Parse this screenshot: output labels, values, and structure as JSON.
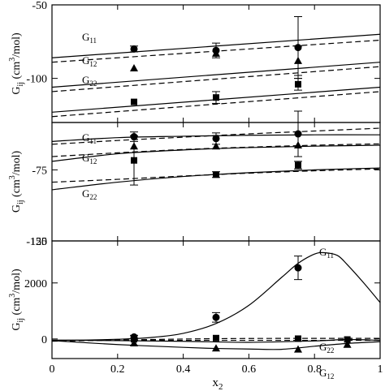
{
  "figure": {
    "shared_x": {
      "label_main": "x",
      "label_sub": "2",
      "ticks": [
        0,
        0.2,
        0.4,
        0.6,
        0.8,
        1
      ],
      "tick_labels": [
        "0",
        "0.2",
        "0.4",
        "0.6",
        "0.8",
        "1"
      ]
    }
  },
  "chart_data": [
    {
      "type": "line",
      "panel": "top",
      "ylabel": "G_ij (cm^3/mol)",
      "xlim": [
        0,
        1
      ],
      "ylim": [
        -130,
        -50
      ],
      "y_ticks": [
        -50,
        -100
      ],
      "y_tick_labels": [
        "-50",
        "-100"
      ],
      "series": [
        {
          "name": "G11",
          "label": "G",
          "label_sub": "11",
          "style": "solid",
          "x": [
            0,
            1
          ],
          "values": [
            -86,
            -70
          ]
        },
        {
          "name": "G11",
          "style": "dashed",
          "x": [
            0,
            1
          ],
          "values": [
            -89,
            -74
          ]
        },
        {
          "name": "G12",
          "label": "G",
          "label_sub": "12",
          "style": "solid",
          "x": [
            0,
            1
          ],
          "values": [
            -106,
            -89
          ]
        },
        {
          "name": "G12",
          "style": "dashed",
          "x": [
            0,
            1
          ],
          "values": [
            -109,
            -92
          ]
        },
        {
          "name": "G22",
          "label": "G",
          "label_sub": "22",
          "style": "solid",
          "x": [
            0,
            1
          ],
          "values": [
            -123,
            -106
          ]
        },
        {
          "name": "G22",
          "style": "dashed",
          "x": [
            0,
            1
          ],
          "values": [
            -126,
            -109
          ]
        }
      ],
      "points": [
        {
          "series": "G11",
          "marker": "circle",
          "x": [
            0.25,
            0.5,
            0.75
          ],
          "y": [
            -80,
            -81,
            -79
          ],
          "err": [
            2,
            5,
            21
          ]
        },
        {
          "series": "G12",
          "marker": "triangle",
          "x": [
            0.25,
            0.5,
            0.75
          ],
          "y": [
            -93,
            -83,
            -88
          ],
          "err": [
            0,
            0,
            10
          ]
        },
        {
          "series": "G22",
          "marker": "square",
          "x": [
            0.25,
            0.5,
            0.75
          ],
          "y": [
            -116,
            -113,
            -104
          ],
          "err": [
            0,
            4,
            4
          ]
        }
      ]
    },
    {
      "type": "line",
      "panel": "middle",
      "ylabel": "G_ij (cm^3/mol)",
      "xlim": [
        0,
        1
      ],
      "ylim": [
        -150,
        -25
      ],
      "y_ticks": [
        -150,
        -75
      ],
      "y_tick_labels": [
        "-150",
        "-75"
      ],
      "series": [
        {
          "name": "G11",
          "label": "G",
          "label_sub": "11",
          "style": "solid",
          "x": [
            0,
            0.2,
            0.4,
            0.6,
            0.8,
            1
          ],
          "values": [
            -45,
            -41,
            -39.5,
            -38.5,
            -38,
            -38
          ]
        },
        {
          "name": "G11",
          "style": "dashed",
          "x": [
            0,
            0.2,
            0.4,
            0.6,
            0.8,
            1
          ],
          "values": [
            -48,
            -44,
            -40.5,
            -37,
            -34,
            -31
          ]
        },
        {
          "name": "G12",
          "label": "G",
          "label_sub": "12",
          "style": "solid",
          "x": [
            0,
            0.2,
            0.4,
            0.6,
            0.8,
            1
          ],
          "values": [
            -66,
            -58,
            -54,
            -51.5,
            -50,
            -49
          ]
        },
        {
          "name": "G12",
          "style": "dashed",
          "x": [
            0,
            0.2,
            0.4,
            0.6,
            0.8,
            1
          ],
          "values": [
            -61,
            -57,
            -53.5,
            -51,
            -49,
            -47.5
          ]
        },
        {
          "name": "G22",
          "label": "G",
          "label_sub": "22",
          "style": "solid",
          "x": [
            0,
            0.2,
            0.4,
            0.6,
            0.8,
            1
          ],
          "values": [
            -96,
            -88,
            -82,
            -78,
            -75,
            -73
          ]
        },
        {
          "name": "G22",
          "style": "dashed",
          "x": [
            0,
            0.2,
            0.4,
            0.6,
            0.8,
            1
          ],
          "values": [
            -88,
            -85,
            -81.5,
            -78.5,
            -76,
            -74
          ]
        }
      ],
      "points": [
        {
          "series": "G11",
          "marker": "circle",
          "x": [
            0.25,
            0.5,
            0.75
          ],
          "y": [
            -40,
            -42,
            -37
          ],
          "err": [
            5,
            6,
            24
          ]
        },
        {
          "series": "G12",
          "marker": "triangle",
          "x": [
            0.25,
            0.5,
            0.75
          ],
          "y": [
            -50,
            -50,
            -49
          ],
          "err": [
            0,
            0,
            0
          ]
        },
        {
          "series": "G22",
          "marker": "square",
          "x": [
            0.25,
            0.5,
            0.75
          ],
          "y": [
            -65,
            -80,
            -70
          ],
          "err": [
            26,
            3,
            4
          ]
        }
      ]
    },
    {
      "type": "line",
      "panel": "bottom",
      "ylabel": "G_ij (cm^3/mol)",
      "xlim": [
        0,
        1
      ],
      "ylim": [
        -700,
        3500
      ],
      "y_ticks": [
        0,
        2000
      ],
      "y_tick_labels": [
        "0",
        "2000"
      ],
      "y_top_tick_label": "-125",
      "series": [
        {
          "name": "G11",
          "label": "G",
          "label_sub": "11",
          "style": "solid",
          "x": [
            0,
            0.1,
            0.2,
            0.3,
            0.4,
            0.5,
            0.6,
            0.7,
            0.75,
            0.8,
            0.83,
            0.87,
            0.9,
            0.95,
            1
          ],
          "values": [
            -50,
            -40,
            -10,
            50,
            200,
            550,
            1200,
            2200,
            2700,
            3030,
            3080,
            2980,
            2650,
            2000,
            1300
          ]
        },
        {
          "name": "G11",
          "style": "dashed",
          "x": [
            0,
            1
          ],
          "values": [
            -50,
            -50
          ]
        },
        {
          "name": "G22",
          "label": "G",
          "label_sub": "22",
          "style": "solid",
          "x": [
            0,
            0.2,
            0.4,
            0.6,
            0.8,
            0.9,
            1
          ],
          "values": [
            -40,
            -60,
            -85,
            -120,
            -70,
            -20,
            -50
          ]
        },
        {
          "name": "G22",
          "style": "dashed",
          "x": [
            0,
            0.5,
            1
          ],
          "values": [
            -80,
            10,
            20
          ]
        },
        {
          "name": "G12",
          "label": "G",
          "label_sub": "12",
          "style": "solid",
          "x": [
            0,
            0.2,
            0.4,
            0.5,
            0.6,
            0.7,
            0.8,
            0.9,
            1
          ],
          "values": [
            -60,
            -200,
            -300,
            -340,
            -360,
            -370,
            -260,
            -160,
            -100
          ]
        }
      ],
      "points": [
        {
          "series": "G11",
          "marker": "circle",
          "x": [
            0.25,
            0.5,
            0.75
          ],
          "y": [
            70,
            770,
            2540
          ],
          "err": [
            60,
            170,
            420
          ]
        },
        {
          "series": "G22",
          "marker": "square",
          "x": [
            0.25,
            0.5,
            0.75,
            0.9
          ],
          "y": [
            -10,
            30,
            10,
            -20
          ],
          "err": [
            0,
            0,
            0,
            0
          ]
        },
        {
          "series": "G12",
          "marker": "triangle",
          "x": [
            0.25,
            0.5,
            0.75,
            0.9
          ],
          "y": [
            -150,
            -330,
            -370,
            -200
          ],
          "err": [
            0,
            0,
            0,
            0
          ]
        }
      ]
    }
  ]
}
